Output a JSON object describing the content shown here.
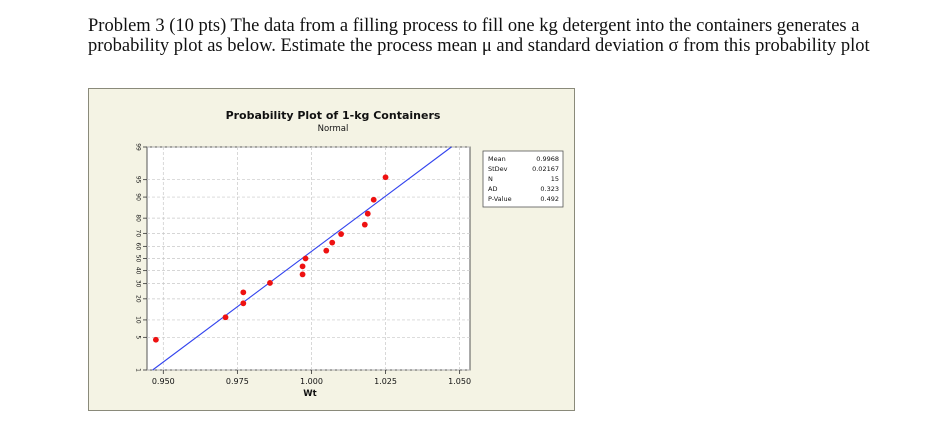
{
  "problem": {
    "text": "Problem 3 (10 pts) The data from a filling process to fill one kg detergent into the containers generates a probability plot as below. Estimate the process mean μ and standard deviation σ from this probability plot"
  },
  "chart_data": {
    "type": "scatter",
    "title": "Probability Plot of 1-kg Containers",
    "subtitle": "Normal",
    "xlabel": "Wt",
    "ylabel": "",
    "x_ticks": [
      "0.950",
      "0.975",
      "1.000",
      "1.025",
      "1.050"
    ],
    "xlim": [
      0.9445,
      1.0535
    ],
    "y_scale": "normal-probability",
    "y_ticks": [
      1,
      5,
      10,
      20,
      30,
      40,
      50,
      60,
      70,
      80,
      90,
      95,
      99
    ],
    "y_tick_labels": [
      "1",
      "5",
      "10",
      "20",
      "30",
      "40",
      "50",
      "60",
      "70",
      "80",
      "90",
      "95",
      "99"
    ],
    "ylim_percent": [
      1,
      99
    ],
    "grid": true,
    "points": [
      {
        "x": 0.9475,
        "y": 4.5
      },
      {
        "x": 0.971,
        "y": 11.0
      },
      {
        "x": 0.977,
        "y": 17.5
      },
      {
        "x": 0.977,
        "y": 24.0
      },
      {
        "x": 0.986,
        "y": 30.5
      },
      {
        "x": 0.997,
        "y": 37.0
      },
      {
        "x": 0.997,
        "y": 43.5
      },
      {
        "x": 0.998,
        "y": 50.0
      },
      {
        "x": 1.005,
        "y": 56.5
      },
      {
        "x": 1.007,
        "y": 63.0
      },
      {
        "x": 1.01,
        "y": 69.5
      },
      {
        "x": 1.018,
        "y": 76.0
      },
      {
        "x": 1.019,
        "y": 82.5
      },
      {
        "x": 1.021,
        "y": 89.0
      },
      {
        "x": 1.025,
        "y": 95.5
      }
    ],
    "fit_line": {
      "mean": 0.9968,
      "stdev": 0.02167
    },
    "stats": [
      {
        "label": "Mean",
        "value": "0.9968"
      },
      {
        "label": "StDev",
        "value": "0.02167"
      },
      {
        "label": "N",
        "value": "15"
      },
      {
        "label": "AD",
        "value": "0.323"
      },
      {
        "label": "P-Value",
        "value": "0.492"
      }
    ],
    "colors": {
      "points": "#ee1111",
      "fit_line": "#3344ee",
      "background": "#f4f3e4",
      "plot_area": "#ffffff"
    },
    "legend_placement": "top-right"
  }
}
